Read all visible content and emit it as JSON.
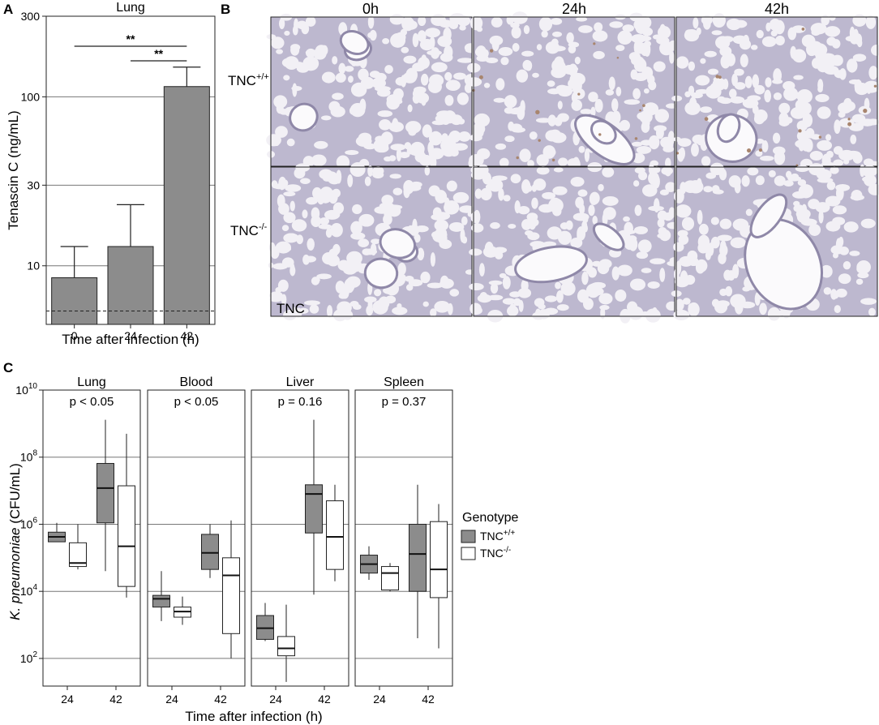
{
  "figure": {
    "panel_letters": {
      "a": "A",
      "b": "B",
      "c": "C"
    }
  },
  "panel_a": {
    "title": "Lung",
    "ylabel": "Tenascin C (ng/mL)",
    "xlabel": "Time after infection (h)",
    "significance": [
      "**",
      "**"
    ],
    "colors": {
      "bar": "#8c8c8c",
      "outline": "#222222",
      "grid": "#777777"
    }
  },
  "panel_b": {
    "column_headers": [
      "0h",
      "24h",
      "42h"
    ],
    "row_headers": [
      "TNC",
      "TNC"
    ],
    "row_superscripts": [
      "+/+",
      "-/-"
    ],
    "corner_label": "TNC",
    "tissue_colors": {
      "background": "#f2f0f5",
      "tissue": "#bdb8cf",
      "airway": "#fbfafc",
      "stain": "#a8856e"
    }
  },
  "panel_c": {
    "ylabel_italic": "K. pneumoniae",
    "ylabel_rest": " (CFU/mL)",
    "xlabel": "Time after infection (h)",
    "legend": {
      "title": "Genotype",
      "entries": [
        {
          "label": "TNC",
          "superscript": "+/+",
          "color": "#8c8c8c"
        },
        {
          "label": "TNC",
          "superscript": "-/-",
          "color": "#ffffff"
        }
      ]
    },
    "y_tick_base": "10",
    "y_tick_exponents": [
      "2",
      "4",
      "6",
      "8",
      "10"
    ]
  },
  "chart_data": [
    {
      "type": "bar",
      "panel": "A",
      "title": "Lung",
      "xlabel": "Time after infection (h)",
      "ylabel": "Tenascin C (ng/mL)",
      "yscale": "log",
      "ylim": [
        4.5,
        300
      ],
      "yticks": [
        10,
        30,
        100,
        300
      ],
      "categories": [
        "0",
        "24",
        "42"
      ],
      "values": [
        8.5,
        13,
        115
      ],
      "error_upper": [
        13,
        23,
        150
      ],
      "detection_limit": 5.4,
      "comparisons": [
        {
          "from": "0",
          "to": "42",
          "label": "**"
        },
        {
          "from": "24",
          "to": "42",
          "label": "**"
        }
      ],
      "grid": true
    },
    {
      "type": "box",
      "panel": "C",
      "xlabel": "Time after infection (h)",
      "ylabel": "K. pneumoniae (CFU/mL)",
      "yscale": "log",
      "ylim": [
        15,
        10000000000.0
      ],
      "yticks": [
        100,
        10000,
        1000000,
        100000000,
        10000000000
      ],
      "categories": [
        "24",
        "42"
      ],
      "series": [
        {
          "name": "TNC+/+"
        },
        {
          "name": "TNC-/-"
        }
      ],
      "facets": [
        {
          "title": "Lung",
          "p_value": "p < 0.05",
          "boxes": [
            {
              "group": "TNC+/+",
              "time": "24",
              "min": 300000,
              "q1": 300000,
              "median": 420000,
              "q3": 580000,
              "max": 1100000
            },
            {
              "group": "TNC-/-",
              "time": "24",
              "min": 45000,
              "q1": 55000,
              "median": 70000,
              "q3": 280000,
              "max": 1000000
            },
            {
              "group": "TNC+/+",
              "time": "42",
              "min": 40000,
              "q1": 1100000,
              "median": 12000000,
              "q3": 65000000,
              "max": 1300000000
            },
            {
              "group": "TNC-/-",
              "time": "42",
              "min": 6500,
              "q1": 14000,
              "median": 220000,
              "q3": 14000000,
              "max": 500000000
            }
          ]
        },
        {
          "title": "Blood",
          "p_value": "p < 0.05",
          "boxes": [
            {
              "group": "TNC+/+",
              "time": "24",
              "min": 1300,
              "q1": 3400,
              "median": 6000,
              "q3": 7600,
              "max": 40000
            },
            {
              "group": "TNC-/-",
              "time": "24",
              "min": 1000,
              "q1": 1700,
              "median": 2500,
              "q3": 3400,
              "max": 7000
            },
            {
              "group": "TNC+/+",
              "time": "42",
              "min": 25000,
              "q1": 45000,
              "median": 140000,
              "q3": 500000,
              "max": 1000000
            },
            {
              "group": "TNC-/-",
              "time": "42",
              "min": 100,
              "q1": 550,
              "median": 30000,
              "q3": 100000,
              "max": 1300000
            }
          ]
        },
        {
          "title": "Liver",
          "p_value": "p = 0.16",
          "boxes": [
            {
              "group": "TNC+/+",
              "time": "24",
              "min": 330,
              "q1": 370,
              "median": 800,
              "q3": 1900,
              "max": 4500
            },
            {
              "group": "TNC-/-",
              "time": "24",
              "min": 20,
              "q1": 120,
              "median": 200,
              "q3": 450,
              "max": 4000
            },
            {
              "group": "TNC+/+",
              "time": "42",
              "min": 8000,
              "q1": 550000,
              "median": 8000000,
              "q3": 15000000,
              "max": 1300000000
            },
            {
              "group": "TNC-/-",
              "time": "42",
              "min": 20000,
              "q1": 45000,
              "median": 420000,
              "q3": 5000000,
              "max": 15000000
            }
          ]
        },
        {
          "title": "Spleen",
          "p_value": "p = 0.37",
          "boxes": [
            {
              "group": "TNC+/+",
              "time": "24",
              "min": 22000,
              "q1": 35000,
              "median": 65000,
              "q3": 120000,
              "max": 220000
            },
            {
              "group": "TNC-/-",
              "time": "24",
              "min": 10000,
              "q1": 11000,
              "median": 35000,
              "q3": 55000,
              "max": 70000
            },
            {
              "group": "TNC+/+",
              "time": "42",
              "min": 400,
              "q1": 10000,
              "median": 130000,
              "q3": 1000000,
              "max": 15000000
            },
            {
              "group": "TNC-/-",
              "time": "42",
              "min": 200,
              "q1": 6500,
              "median": 45000,
              "q3": 1200000,
              "max": 4000000
            }
          ]
        }
      ],
      "grid": true,
      "legend": "right"
    }
  ]
}
